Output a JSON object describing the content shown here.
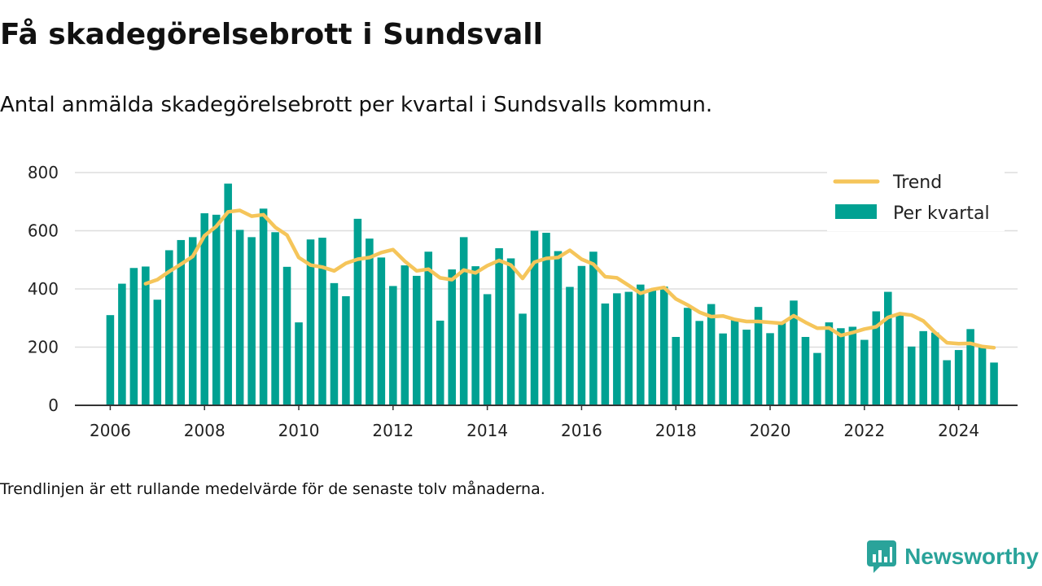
{
  "header": {
    "title": "Få skadegörelsebrott i Sundsvall",
    "subtitle": "Antal anmälda skadegörelsebrott per kvartal i Sundsvalls kommun."
  },
  "footnote": "Trendlinjen är ett rullande medelvärde för de senaste tolv månaderna.",
  "brand": {
    "name": "Newsworthy",
    "icon": "newsworthy-chat-chart-icon",
    "color": "#2aa39a"
  },
  "chart_data": {
    "type": "bar",
    "xlabel": "",
    "ylabel": "",
    "ylim": [
      0,
      800
    ],
    "yticks": [
      0,
      200,
      400,
      600,
      800
    ],
    "xticks": [
      "2006",
      "2008",
      "2010",
      "2012",
      "2014",
      "2016",
      "2018",
      "2020",
      "2022",
      "2024"
    ],
    "xrange": [
      2005.25,
      2025.25
    ],
    "grid": true,
    "legend_position": "top-right",
    "colors": {
      "bars": "#00a192",
      "trend": "#f5c55a",
      "grid": "#dddddd",
      "axis": "#333333"
    },
    "series": [
      {
        "name": "Per kvartal",
        "type": "bar",
        "x_start": 2006.0,
        "x_step": 0.25,
        "values": [
          310,
          418,
          472,
          477,
          363,
          533,
          568,
          578,
          660,
          655,
          762,
          603,
          578,
          676,
          595,
          476,
          285,
          570,
          576,
          420,
          375,
          641,
          573,
          508,
          410,
          481,
          445,
          528,
          291,
          467,
          578,
          478,
          382,
          540,
          505,
          315,
          600,
          593,
          530,
          407,
          479,
          528,
          350,
          385,
          390,
          415,
          395,
          408,
          235,
          335,
          290,
          348,
          247,
          293,
          260,
          338,
          248,
          285,
          360,
          235,
          180,
          285,
          265,
          270,
          225,
          323,
          390,
          310,
          202,
          255,
          250,
          155,
          190,
          262,
          205,
          147
        ]
      },
      {
        "name": "Trend",
        "type": "line",
        "x": [
          2006.75,
          2007.0,
          2007.25,
          2007.5,
          2007.75,
          2008.0,
          2008.25,
          2008.5,
          2008.75,
          2009.0,
          2009.25,
          2009.5,
          2009.75,
          2010.0,
          2010.25,
          2010.5,
          2010.75,
          2011.0,
          2011.25,
          2011.5,
          2011.75,
          2012.0,
          2012.25,
          2012.5,
          2012.75,
          2013.0,
          2013.25,
          2013.5,
          2013.75,
          2014.0,
          2014.25,
          2014.5,
          2014.75,
          2015.0,
          2015.25,
          2015.5,
          2015.75,
          2016.0,
          2016.25,
          2016.5,
          2016.75,
          2017.0,
          2017.25,
          2017.5,
          2017.75,
          2018.0,
          2018.25,
          2018.5,
          2018.75,
          2019.0,
          2019.25,
          2019.5,
          2019.75,
          2020.0,
          2020.25,
          2020.5,
          2020.75,
          2021.0,
          2021.25,
          2021.5,
          2021.75,
          2022.0,
          2022.25,
          2022.5,
          2022.75,
          2023.0,
          2023.25,
          2023.5,
          2023.75,
          2024.0,
          2024.25,
          2024.5,
          2024.75
        ],
        "values": [
          418,
          432,
          460,
          485,
          512,
          583,
          615,
          665,
          670,
          650,
          655,
          612,
          585,
          508,
          482,
          475,
          462,
          488,
          502,
          508,
          525,
          535,
          495,
          462,
          468,
          438,
          432,
          465,
          455,
          480,
          498,
          482,
          436,
          492,
          505,
          508,
          533,
          502,
          485,
          442,
          438,
          412,
          385,
          398,
          405,
          366,
          345,
          320,
          305,
          307,
          295,
          288,
          288,
          285,
          282,
          308,
          285,
          265,
          266,
          240,
          250,
          262,
          270,
          302,
          315,
          310,
          290,
          250,
          215,
          212,
          213,
          202,
          198
        ]
      }
    ]
  }
}
